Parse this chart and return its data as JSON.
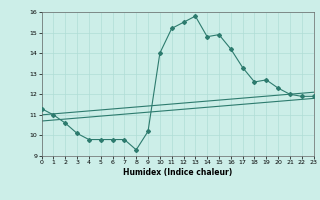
{
  "xlabel": "Humidex (Indice chaleur)",
  "xlim": [
    0,
    23
  ],
  "ylim": [
    9,
    16
  ],
  "yticks": [
    9,
    10,
    11,
    12,
    13,
    14,
    15,
    16
  ],
  "xticks": [
    0,
    1,
    2,
    3,
    4,
    5,
    6,
    7,
    8,
    9,
    10,
    11,
    12,
    13,
    14,
    15,
    16,
    17,
    18,
    19,
    20,
    21,
    22,
    23
  ],
  "bg_color": "#cceee8",
  "grid_color": "#b0ddd6",
  "line_color": "#2d7b6e",
  "line1_x": [
    0,
    1,
    2,
    3,
    4,
    5,
    6,
    7,
    8,
    9,
    10,
    11,
    12,
    13,
    14,
    15,
    16,
    17,
    18,
    19,
    20,
    21,
    22,
    23
  ],
  "line1_y": [
    11.3,
    11.0,
    10.6,
    10.1,
    9.8,
    9.8,
    9.8,
    9.8,
    9.3,
    10.2,
    14.0,
    15.2,
    15.5,
    15.8,
    14.8,
    14.9,
    14.2,
    13.3,
    12.6,
    12.7,
    12.3,
    12.0,
    11.9,
    11.9
  ],
  "line2_x": [
    0,
    23
  ],
  "line2_y": [
    11.0,
    12.1
  ],
  "line3_x": [
    0,
    23
  ],
  "line3_y": [
    10.7,
    11.8
  ]
}
